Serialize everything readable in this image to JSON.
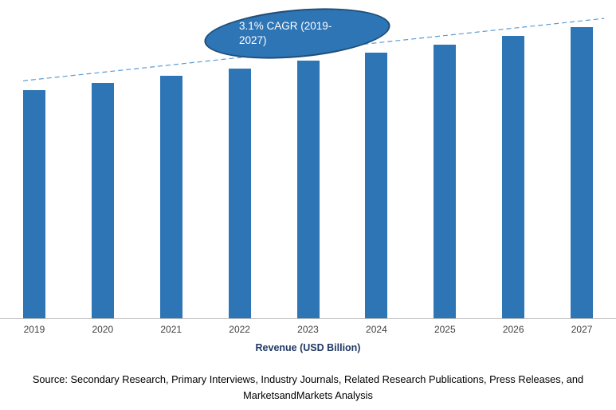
{
  "chart_data": {
    "type": "bar",
    "categories": [
      "2019",
      "2020",
      "2021",
      "2022",
      "2023",
      "2024",
      "2025",
      "2026",
      "2027"
    ],
    "values": [
      100,
      103.1,
      106.3,
      109.6,
      113.0,
      116.5,
      120.1,
      123.8,
      127.7
    ],
    "title": "",
    "xlabel": "Revenue (USD Billion)",
    "ylabel": "",
    "ylim": [
      0,
      140
    ],
    "grid": false,
    "legend": false,
    "bar_color": "#2E75B6",
    "axis_line_color": "#BFBFBF",
    "x_axis_title_color": "#1F3864",
    "trendline": {
      "style": "dashed",
      "color": "#5B9BD5"
    },
    "annotation": {
      "text": "3.1% CAGR (2019-2027)",
      "fill": "#2E75B6",
      "border": "#1F4E79",
      "text_color": "#FFFFFF"
    }
  },
  "footer": {
    "source": "Source: Secondary Research, Primary Interviews, Industry Journals, Related Research Publications, Press Releases, and MarketsandMarkets Analysis"
  }
}
